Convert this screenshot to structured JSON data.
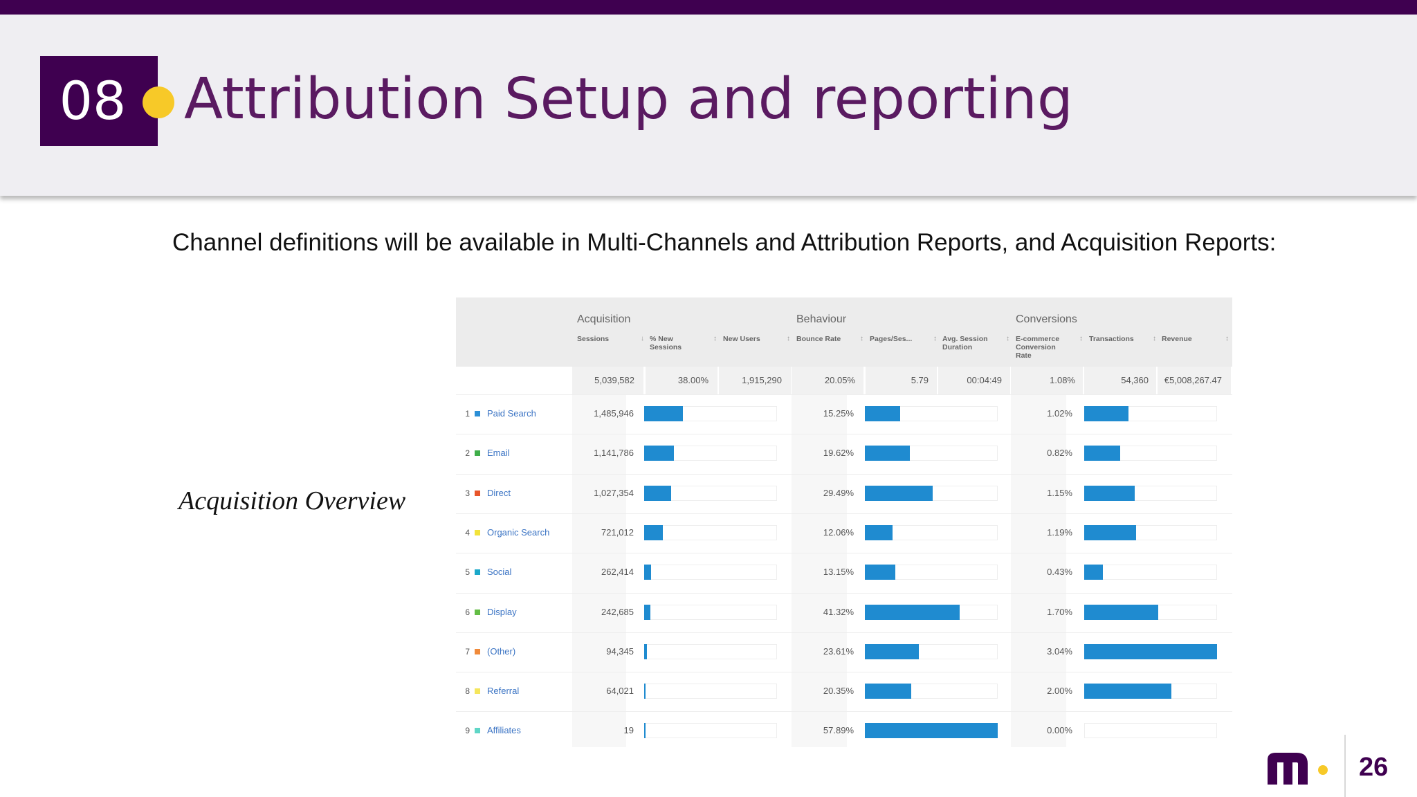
{
  "slide": {
    "number": "08",
    "title": "Attribution Setup and reporting",
    "subtitle": "Channel definitions will be available in Multi-Channels and Attribution Reports, and Acquisition Reports:",
    "caption": "Acquisition Overview",
    "page_number": "26"
  },
  "colors": {
    "brand_purple": "#3f0050",
    "title_purple": "#5a1a61",
    "accent_yellow": "#f7c928",
    "bar_blue": "#1f8bd0",
    "link_blue": "#3b74c4"
  },
  "report": {
    "groups": [
      "Acquisition",
      "Behaviour",
      "Conversions"
    ],
    "columns": [
      [
        "Sessions"
      ],
      [
        "% New",
        "Sessions"
      ],
      [
        "New Users"
      ],
      [
        "Bounce Rate"
      ],
      [
        "Pages/Ses..."
      ],
      [
        "Avg. Session",
        "Duration"
      ],
      [
        "E-commerce",
        "Conversion",
        "Rate"
      ],
      [
        "Transactions"
      ],
      [
        "Revenue"
      ]
    ],
    "totals": [
      "5,039,582",
      "38.00%",
      "1,915,290",
      "20.05%",
      "5.79",
      "00:04:49",
      "1.08%",
      "54,360",
      "€5,008,267.47"
    ],
    "rows": [
      {
        "rank": "1",
        "channel": "Paid Search",
        "color": "#2b8fd6",
        "sessions": "1,485,946",
        "sessions_share": 0.295,
        "bounce_rate": "15.25%",
        "bounce_value": 15.25,
        "conversion_rate": "1.02%",
        "conversion_value": 1.02
      },
      {
        "rank": "2",
        "channel": "Email",
        "color": "#3fae49",
        "sessions": "1,141,786",
        "sessions_share": 0.227,
        "bounce_rate": "19.62%",
        "bounce_value": 19.62,
        "conversion_rate": "0.82%",
        "conversion_value": 0.82
      },
      {
        "rank": "3",
        "channel": "Direct",
        "color": "#e8552a",
        "sessions": "1,027,354",
        "sessions_share": 0.204,
        "bounce_rate": "29.49%",
        "bounce_value": 29.49,
        "conversion_rate": "1.15%",
        "conversion_value": 1.15
      },
      {
        "rank": "4",
        "channel": "Organic Search",
        "color": "#f2e33a",
        "sessions": "721,012",
        "sessions_share": 0.143,
        "bounce_rate": "12.06%",
        "bounce_value": 12.06,
        "conversion_rate": "1.19%",
        "conversion_value": 1.19
      },
      {
        "rank": "5",
        "channel": "Social",
        "color": "#1aa8c9",
        "sessions": "262,414",
        "sessions_share": 0.052,
        "bounce_rate": "13.15%",
        "bounce_value": 13.15,
        "conversion_rate": "0.43%",
        "conversion_value": 0.43
      },
      {
        "rank": "6",
        "channel": "Display",
        "color": "#63bd45",
        "sessions": "242,685",
        "sessions_share": 0.048,
        "bounce_rate": "41.32%",
        "bounce_value": 41.32,
        "conversion_rate": "1.70%",
        "conversion_value": 1.7
      },
      {
        "rank": "7",
        "channel": "(Other)",
        "color": "#f08a3a",
        "sessions": "94,345",
        "sessions_share": 0.019,
        "bounce_rate": "23.61%",
        "bounce_value": 23.61,
        "conversion_rate": "3.04%",
        "conversion_value": 3.04
      },
      {
        "rank": "8",
        "channel": "Referral",
        "color": "#f5e65c",
        "sessions": "64,021",
        "sessions_share": 0.013,
        "bounce_rate": "20.35%",
        "bounce_value": 20.35,
        "conversion_rate": "2.00%",
        "conversion_value": 2.0
      },
      {
        "rank": "9",
        "channel": "Affiliates",
        "color": "#5fd6c6",
        "sessions": "19",
        "sessions_share": 4e-06,
        "bounce_rate": "57.89%",
        "bounce_value": 57.89,
        "conversion_rate": "0.00%",
        "conversion_value": 0.0
      }
    ]
  }
}
